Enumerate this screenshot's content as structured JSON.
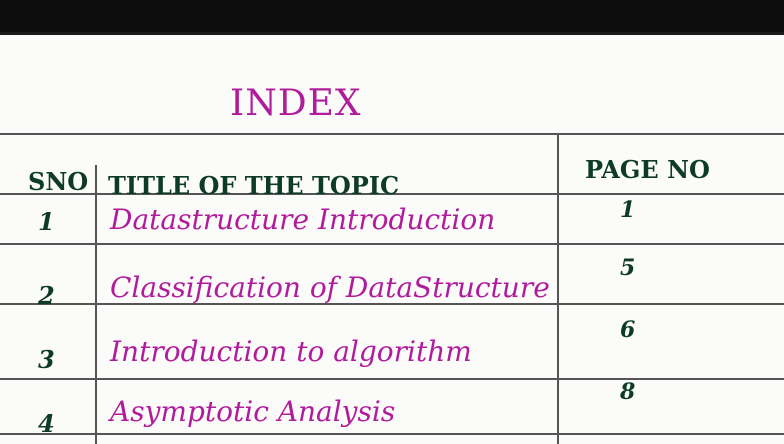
{
  "heading": "INDEX",
  "columns": {
    "sno": "SNO",
    "title": "TITLE OF THE TOPIC",
    "page": "PAGE NO"
  },
  "rows": [
    {
      "sno": "1",
      "title": "Datastructure Introduction",
      "page": "1"
    },
    {
      "sno": "2",
      "title": "Classification of DataStructure",
      "page": "5"
    },
    {
      "sno": "3",
      "title": "Introduction to algorithm",
      "page": "6"
    },
    {
      "sno": "4",
      "title": "Asymptotic Analysis",
      "page": "8"
    }
  ],
  "colors": {
    "ink_purple": "#b01c9c",
    "ink_green": "#0e3a2a"
  }
}
